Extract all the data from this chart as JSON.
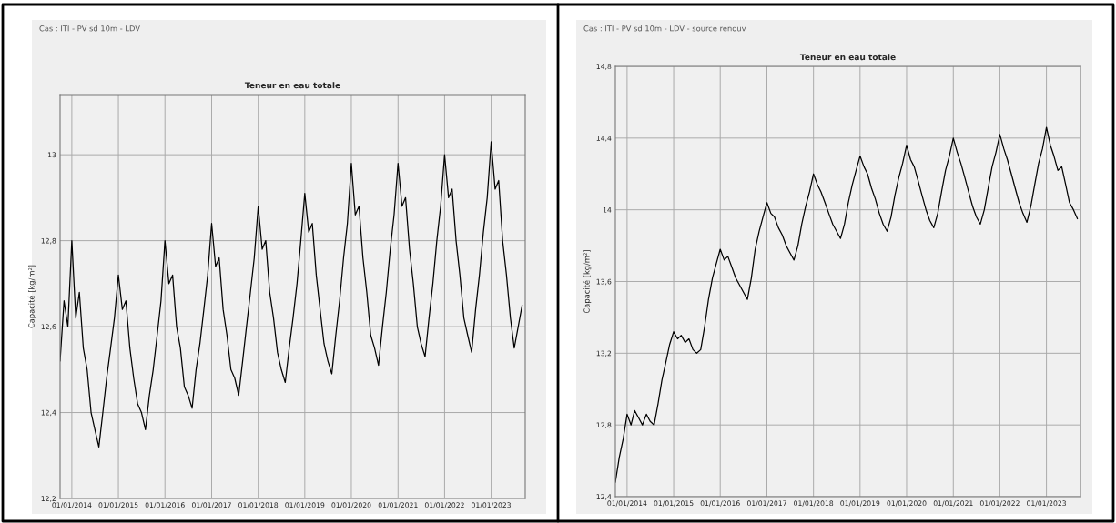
{
  "chart_data": [
    {
      "type": "line",
      "title": "Teneur en eau totale",
      "subtitle": "Cas : ITI - PV sd 10m - LDV",
      "ylabel": "Capacité [kg/m²]",
      "x": [
        "2013-10",
        "2013-11",
        "2013-12",
        "2014-01",
        "2014-02",
        "2014-03",
        "2014-04",
        "2014-05",
        "2014-06",
        "2014-07",
        "2014-08",
        "2014-09",
        "2014-10",
        "2014-11",
        "2014-12",
        "2015-01",
        "2015-02",
        "2015-03",
        "2015-04",
        "2015-05",
        "2015-06",
        "2015-07",
        "2015-08",
        "2015-09",
        "2015-10",
        "2015-11",
        "2015-12",
        "2016-01",
        "2016-02",
        "2016-03",
        "2016-04",
        "2016-05",
        "2016-06",
        "2016-07",
        "2016-08",
        "2016-09",
        "2016-10",
        "2016-11",
        "2016-12",
        "2017-01",
        "2017-02",
        "2017-03",
        "2017-04",
        "2017-05",
        "2017-06",
        "2017-07",
        "2017-08",
        "2017-09",
        "2017-10",
        "2017-11",
        "2017-12",
        "2018-01",
        "2018-02",
        "2018-03",
        "2018-04",
        "2018-05",
        "2018-06",
        "2018-07",
        "2018-08",
        "2018-09",
        "2018-10",
        "2018-11",
        "2018-12",
        "2019-01",
        "2019-02",
        "2019-03",
        "2019-04",
        "2019-05",
        "2019-06",
        "2019-07",
        "2019-08",
        "2019-09",
        "2019-10",
        "2019-11",
        "2019-12",
        "2020-01",
        "2020-02",
        "2020-03",
        "2020-04",
        "2020-05",
        "2020-06",
        "2020-07",
        "2020-08",
        "2020-09",
        "2020-10",
        "2020-11",
        "2020-12",
        "2021-01",
        "2021-02",
        "2021-03",
        "2021-04",
        "2021-05",
        "2021-06",
        "2021-07",
        "2021-08",
        "2021-09",
        "2021-10",
        "2021-11",
        "2021-12",
        "2022-01",
        "2022-02",
        "2022-03",
        "2022-04",
        "2022-05",
        "2022-06",
        "2022-07",
        "2022-08",
        "2022-09",
        "2022-10",
        "2022-11",
        "2022-12",
        "2023-01",
        "2023-02",
        "2023-03",
        "2023-04",
        "2023-05",
        "2023-06",
        "2023-07",
        "2023-08",
        "2023-09"
      ],
      "series": [
        {
          "color": "#000000",
          "values": [
            12.52,
            12.66,
            12.6,
            12.8,
            12.62,
            12.68,
            12.55,
            12.5,
            12.4,
            12.36,
            12.32,
            12.4,
            12.48,
            12.55,
            12.62,
            12.72,
            12.64,
            12.66,
            12.55,
            12.48,
            12.42,
            12.4,
            12.36,
            12.44,
            12.5,
            12.58,
            12.66,
            12.8,
            12.7,
            12.72,
            12.6,
            12.55,
            12.46,
            12.44,
            12.41,
            12.5,
            12.56,
            12.64,
            12.72,
            12.84,
            12.74,
            12.76,
            12.64,
            12.58,
            12.5,
            12.48,
            12.44,
            12.52,
            12.6,
            12.68,
            12.76,
            12.88,
            12.78,
            12.8,
            12.68,
            12.62,
            12.54,
            12.5,
            12.47,
            12.55,
            12.62,
            12.7,
            12.8,
            12.91,
            12.82,
            12.84,
            12.72,
            12.64,
            12.56,
            12.52,
            12.49,
            12.58,
            12.66,
            12.76,
            12.84,
            12.98,
            12.86,
            12.88,
            12.76,
            12.68,
            12.58,
            12.55,
            12.51,
            12.6,
            12.68,
            12.78,
            12.86,
            12.98,
            12.88,
            12.9,
            12.78,
            12.7,
            12.6,
            12.56,
            12.53,
            12.62,
            12.7,
            12.8,
            12.88,
            13.0,
            12.9,
            12.92,
            12.8,
            12.72,
            12.62,
            12.58,
            12.54,
            12.64,
            12.72,
            12.82,
            12.9,
            13.03,
            12.92,
            12.94,
            12.8,
            12.72,
            12.62,
            12.55,
            12.6,
            12.65
          ]
        }
      ],
      "xlim": [
        "2013-10-01",
        "2023-09-25"
      ],
      "xticks": [
        {
          "value": "2014-01-01",
          "label": "01/01/2014"
        },
        {
          "value": "2015-01-01",
          "label": "01/01/2015"
        },
        {
          "value": "2016-01-01",
          "label": "01/01/2016"
        },
        {
          "value": "2017-01-01",
          "label": "01/01/2017"
        },
        {
          "value": "2018-01-01",
          "label": "01/01/2018"
        },
        {
          "value": "2019-01-01",
          "label": "01/01/2019"
        },
        {
          "value": "2020-01-01",
          "label": "01/01/2020"
        },
        {
          "value": "2021-01-01",
          "label": "01/01/2021"
        },
        {
          "value": "2022-01-01",
          "label": "01/01/2022"
        },
        {
          "value": "2023-01-01",
          "label": "01/01/2023"
        }
      ],
      "ylim": [
        12.2,
        13.14
      ],
      "yticks": [
        {
          "value": 12.2,
          "label": "12,2"
        },
        {
          "value": 12.4,
          "label": "12,4"
        },
        {
          "value": 12.6,
          "label": "12,6"
        },
        {
          "value": 12.8,
          "label": "12,8"
        },
        13
      ],
      "grid": true,
      "marker": "none",
      "line_style": "solid"
    },
    {
      "type": "line",
      "title": "Teneur en eau totale",
      "subtitle": "Cas : ITI - PV sd 10m - LDV - source renouv",
      "ylabel": "Capacité [kg/m²]",
      "x": [
        "2013-10",
        "2013-11",
        "2013-12",
        "2014-01",
        "2014-02",
        "2014-03",
        "2014-04",
        "2014-05",
        "2014-06",
        "2014-07",
        "2014-08",
        "2014-09",
        "2014-10",
        "2014-11",
        "2014-12",
        "2015-01",
        "2015-02",
        "2015-03",
        "2015-04",
        "2015-05",
        "2015-06",
        "2015-07",
        "2015-08",
        "2015-09",
        "2015-10",
        "2015-11",
        "2015-12",
        "2016-01",
        "2016-02",
        "2016-03",
        "2016-04",
        "2016-05",
        "2016-06",
        "2016-07",
        "2016-08",
        "2016-09",
        "2016-10",
        "2016-11",
        "2016-12",
        "2017-01",
        "2017-02",
        "2017-03",
        "2017-04",
        "2017-05",
        "2017-06",
        "2017-07",
        "2017-08",
        "2017-09",
        "2017-10",
        "2017-11",
        "2017-12",
        "2018-01",
        "2018-02",
        "2018-03",
        "2018-04",
        "2018-05",
        "2018-06",
        "2018-07",
        "2018-08",
        "2018-09",
        "2018-10",
        "2018-11",
        "2018-12",
        "2019-01",
        "2019-02",
        "2019-03",
        "2019-04",
        "2019-05",
        "2019-06",
        "2019-07",
        "2019-08",
        "2019-09",
        "2019-10",
        "2019-11",
        "2019-12",
        "2020-01",
        "2020-02",
        "2020-03",
        "2020-04",
        "2020-05",
        "2020-06",
        "2020-07",
        "2020-08",
        "2020-09",
        "2020-10",
        "2020-11",
        "2020-12",
        "2021-01",
        "2021-02",
        "2021-03",
        "2021-04",
        "2021-05",
        "2021-06",
        "2021-07",
        "2021-08",
        "2021-09",
        "2021-10",
        "2021-11",
        "2021-12",
        "2022-01",
        "2022-02",
        "2022-03",
        "2022-04",
        "2022-05",
        "2022-06",
        "2022-07",
        "2022-08",
        "2022-09",
        "2022-10",
        "2022-11",
        "2022-12",
        "2023-01",
        "2023-02",
        "2023-03",
        "2023-04",
        "2023-05",
        "2023-06",
        "2023-07",
        "2023-08",
        "2023-09"
      ],
      "series": [
        {
          "color": "#000000",
          "values": [
            12.48,
            12.62,
            12.72,
            12.86,
            12.8,
            12.88,
            12.84,
            12.8,
            12.86,
            12.82,
            12.8,
            12.92,
            13.05,
            13.15,
            13.25,
            13.32,
            13.28,
            13.3,
            13.26,
            13.28,
            13.22,
            13.2,
            13.22,
            13.35,
            13.5,
            13.62,
            13.7,
            13.78,
            13.72,
            13.74,
            13.68,
            13.62,
            13.58,
            13.54,
            13.5,
            13.62,
            13.78,
            13.88,
            13.96,
            14.04,
            13.98,
            13.96,
            13.9,
            13.86,
            13.8,
            13.76,
            13.72,
            13.8,
            13.92,
            14.02,
            14.1,
            14.2,
            14.14,
            14.1,
            14.04,
            13.98,
            13.92,
            13.88,
            13.84,
            13.92,
            14.04,
            14.14,
            14.22,
            14.3,
            14.24,
            14.2,
            14.12,
            14.06,
            13.98,
            13.92,
            13.88,
            13.96,
            14.08,
            14.18,
            14.26,
            14.36,
            14.28,
            14.24,
            14.16,
            14.08,
            14.0,
            13.94,
            13.9,
            13.98,
            14.1,
            14.22,
            14.3,
            14.4,
            14.32,
            14.26,
            14.18,
            14.1,
            14.02,
            13.96,
            13.92,
            14.0,
            14.12,
            14.24,
            14.32,
            14.42,
            14.34,
            14.28,
            14.2,
            14.12,
            14.04,
            13.98,
            13.93,
            14.02,
            14.14,
            14.26,
            14.34,
            14.46,
            14.36,
            14.3,
            14.22,
            14.24,
            14.14,
            14.04,
            14.0,
            13.95
          ]
        }
      ],
      "xlim": [
        "2013-10-01",
        "2023-09-25"
      ],
      "xticks": [
        {
          "value": "2014-01-01",
          "label": "01/01/2014"
        },
        {
          "value": "2015-01-01",
          "label": "01/01/2015"
        },
        {
          "value": "2016-01-01",
          "label": "01/01/2016"
        },
        {
          "value": "2017-01-01",
          "label": "01/01/2017"
        },
        {
          "value": "2018-01-01",
          "label": "01/01/2018"
        },
        {
          "value": "2019-01-01",
          "label": "01/01/2019"
        },
        {
          "value": "2020-01-01",
          "label": "01/01/2020"
        },
        {
          "value": "2021-01-01",
          "label": "01/01/2021"
        },
        {
          "value": "2022-01-01",
          "label": "01/01/2022"
        },
        {
          "value": "2023-01-01",
          "label": "01/01/2023"
        }
      ],
      "ylim": [
        12.4,
        14.8
      ],
      "yticks": [
        {
          "value": 12.4,
          "label": "12,4"
        },
        {
          "value": 12.8,
          "label": "12,8"
        },
        {
          "value": 13.2,
          "label": "13,2"
        },
        {
          "value": 13.6,
          "label": "13,6"
        },
        14,
        {
          "value": 14.4,
          "label": "14,4"
        },
        {
          "value": 14.8,
          "label": "14,8"
        }
      ],
      "grid": true,
      "marker": "none",
      "line_style": "solid"
    }
  ]
}
